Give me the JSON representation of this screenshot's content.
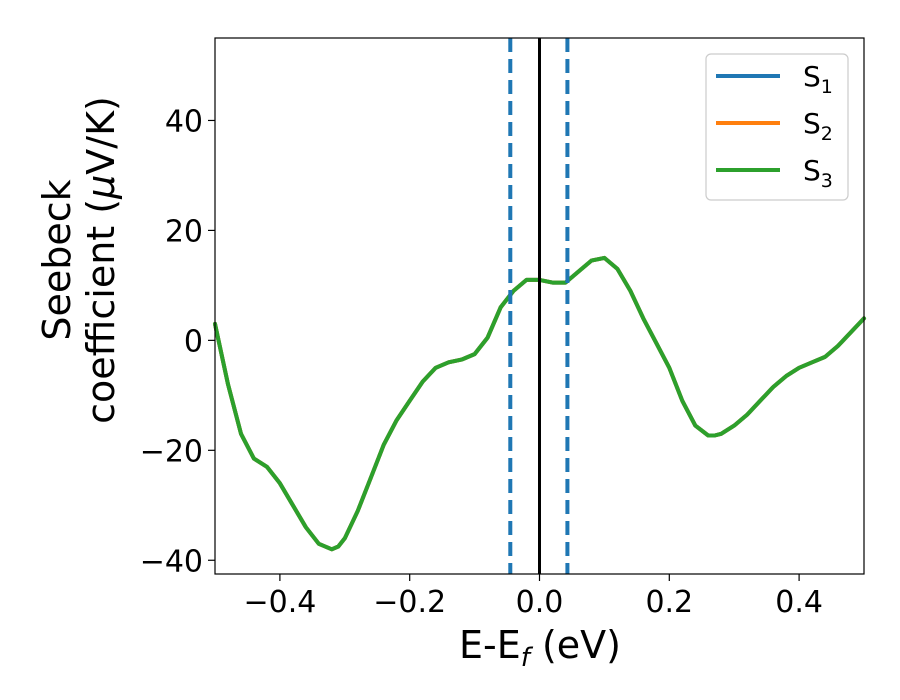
{
  "chart_data": {
    "type": "line",
    "title": "",
    "xlabel": "E-E",
    "xlabel_sub": "f",
    "xlabel_unit": " (eV)",
    "ylabel_line1": "Seebeck",
    "ylabel_line2": "coefficient  (",
    "ylabel_mu": "μ",
    "ylabel_unit": "V/K)",
    "xlim": [
      -0.5,
      0.5
    ],
    "ylim": [
      -42.5,
      55
    ],
    "xticks": [
      -0.4,
      -0.2,
      0.0,
      0.2,
      0.4
    ],
    "xtick_labels": [
      "−0.4",
      "−0.2",
      "0.0",
      "0.2",
      "0.4"
    ],
    "yticks": [
      -40,
      -20,
      0,
      20,
      40
    ],
    "ytick_labels": [
      "−40",
      "−20",
      "0",
      "20",
      "40"
    ],
    "grid": false,
    "legend_position": "top-right",
    "reference_lines": [
      {
        "x": -0.045,
        "style": "dashed",
        "color": "#1f77b4"
      },
      {
        "x": 0.0,
        "style": "solid",
        "color": "#000000"
      },
      {
        "x": 0.043,
        "style": "dashed",
        "color": "#1f77b4"
      }
    ],
    "x": [
      -0.5,
      -0.48,
      -0.46,
      -0.44,
      -0.42,
      -0.4,
      -0.38,
      -0.36,
      -0.34,
      -0.32,
      -0.31,
      -0.3,
      -0.28,
      -0.26,
      -0.24,
      -0.22,
      -0.2,
      -0.18,
      -0.16,
      -0.14,
      -0.12,
      -0.1,
      -0.08,
      -0.06,
      -0.04,
      -0.02,
      0.0,
      0.02,
      0.04,
      0.06,
      0.08,
      0.1,
      0.12,
      0.14,
      0.16,
      0.18,
      0.2,
      0.22,
      0.24,
      0.26,
      0.27,
      0.28,
      0.3,
      0.32,
      0.34,
      0.36,
      0.38,
      0.4,
      0.42,
      0.44,
      0.46,
      0.48,
      0.5
    ],
    "series": [
      {
        "name": "S",
        "sub": "1",
        "color": "#1f77b4",
        "values": [
          3,
          -8,
          -17,
          -21.5,
          -23,
          -26,
          -30,
          -34,
          -37,
          -38,
          -37.5,
          -36,
          -31,
          -25,
          -19,
          -14.5,
          -11,
          -7.5,
          -5,
          -4,
          -3.5,
          -2.5,
          0.5,
          6,
          9,
          11,
          11,
          10.5,
          10.5,
          12.5,
          14.5,
          15,
          13,
          9,
          4,
          -0.5,
          -5,
          -11,
          -15.5,
          -17.3,
          -17.3,
          -17,
          -15.5,
          -13.5,
          -11,
          -8.5,
          -6.5,
          -5,
          -4,
          -3,
          -1,
          1.5,
          4
        ]
      },
      {
        "name": "S",
        "sub": "2",
        "color": "#ff7f0e",
        "values": [
          3,
          -8,
          -17,
          -21.5,
          -23,
          -26,
          -30,
          -34,
          -37,
          -38,
          -37.5,
          -36,
          -31,
          -25,
          -19,
          -14.5,
          -11,
          -7.5,
          -5,
          -4,
          -3.5,
          -2.5,
          0.5,
          6,
          9,
          11,
          11,
          10.5,
          10.5,
          12.5,
          14.5,
          15,
          13,
          9,
          4,
          -0.5,
          -5,
          -11,
          -15.5,
          -17.3,
          -17.3,
          -17,
          -15.5,
          -13.5,
          -11,
          -8.5,
          -6.5,
          -5,
          -4,
          -3,
          -1,
          1.5,
          4
        ]
      },
      {
        "name": "S",
        "sub": "3",
        "color": "#2ca02c",
        "values": [
          3,
          -8,
          -17,
          -21.5,
          -23,
          -26,
          -30,
          -34,
          -37,
          -38,
          -37.5,
          -36,
          -31,
          -25,
          -19,
          -14.5,
          -11,
          -7.5,
          -5,
          -4,
          -3.5,
          -2.5,
          0.5,
          6,
          9,
          11,
          11,
          10.5,
          10.5,
          12.5,
          14.5,
          15,
          13,
          9,
          4,
          -0.5,
          -5,
          -11,
          -15.5,
          -17.3,
          -17.3,
          -17,
          -15.5,
          -13.5,
          -11,
          -8.5,
          -6.5,
          -5,
          -4,
          -3,
          -1,
          1.5,
          4
        ]
      }
    ]
  }
}
